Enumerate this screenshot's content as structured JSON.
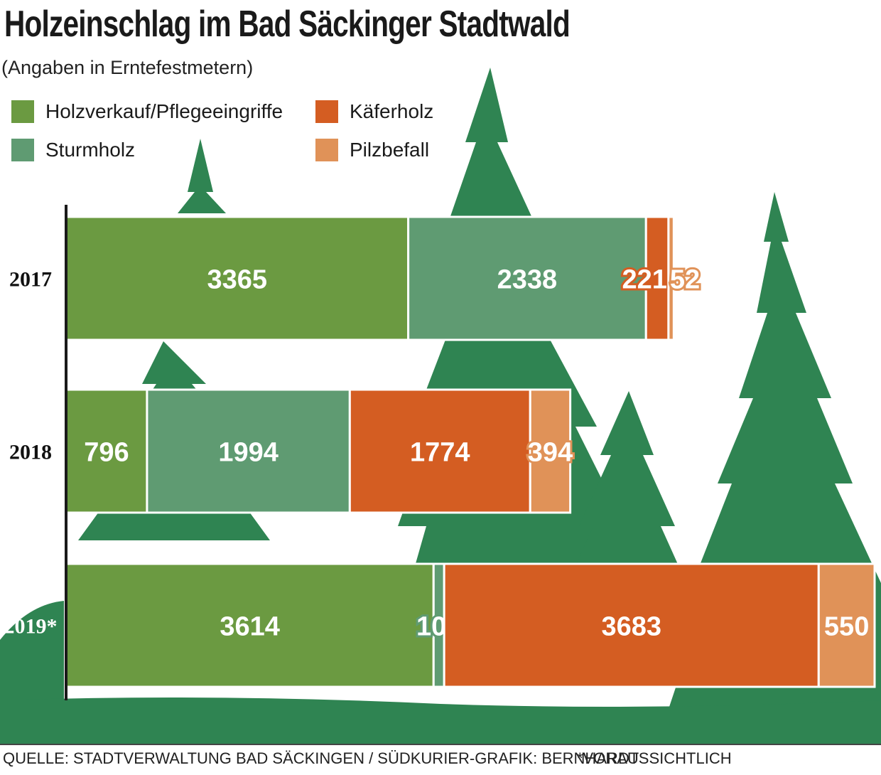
{
  "title": "Holzeinschlag im Bad Säckinger Stadtwald",
  "subtitle": "(Angaben in Erntefestmetern)",
  "legend": [
    {
      "label": "Holzverkauf/Pflegeeingriffe",
      "color": "#6b9a41"
    },
    {
      "label": "Käferholz",
      "color": "#d45d22"
    },
    {
      "label": "Sturmholz",
      "color": "#5f9b72"
    },
    {
      "label": "Pilzbefall",
      "color": "#e09258"
    }
  ],
  "chart_data": {
    "type": "bar",
    "orientation": "horizontal",
    "stacked": true,
    "title": "Holzeinschlag im Bad Säckinger Stadtwald",
    "subtitle": "(Angaben in Erntefestmetern)",
    "categories": [
      "2017",
      "2018",
      "2019*"
    ],
    "series": [
      {
        "name": "Holzverkauf/Pflegeeingriffe",
        "color": "#6b9a41",
        "values": [
          3365,
          796,
          3614
        ]
      },
      {
        "name": "Sturmholz",
        "color": "#5f9b72",
        "values": [
          2338,
          1994,
          104
        ]
      },
      {
        "name": "Käferholz",
        "color": "#d45d22",
        "values": [
          221,
          1774,
          3683
        ]
      },
      {
        "name": "Pilzbefall",
        "color": "#e09258",
        "values": [
          52,
          394,
          550
        ]
      }
    ],
    "xlim": [
      0,
      7951
    ],
    "legend_position": "top-left",
    "grid": false
  },
  "footer": {
    "source": "QUELLE: STADTVERWALTUNG BAD SÄCKINGEN / SÜDKURIER-GRAFIK: BERNHARDT",
    "note": "*VORAUSSICHTLICH"
  },
  "colors": {
    "tree": "#2f8452",
    "ground": "#2f8452",
    "axis": "#1a1a1a"
  }
}
